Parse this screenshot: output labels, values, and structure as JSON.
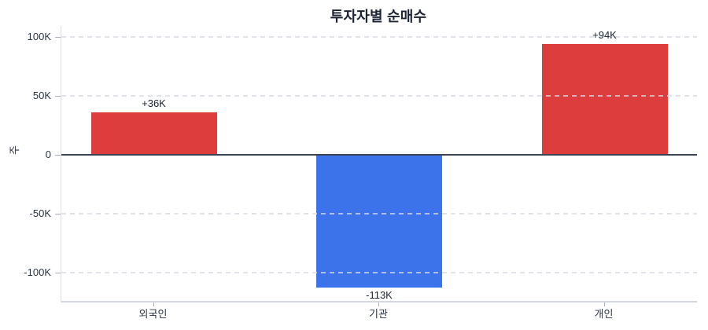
{
  "title": "투자자별 순매수",
  "colors": {
    "positive_bar": "#de3d3d",
    "negative_bar": "#3d73ea",
    "zero_line": "#3b4454",
    "grid_line": "#d5dae2",
    "axis_line": "#d3d8e0",
    "tick_text": "#2b3442",
    "title_text": "#1c2433"
  },
  "chart_data": {
    "type": "bar",
    "title": "투자자별 순매수",
    "xlabel": "",
    "ylabel": "주",
    "categories": [
      "외국인",
      "기관",
      "개인"
    ],
    "values": [
      36000,
      -113000,
      94000
    ],
    "value_labels": [
      "+36K",
      "-113K",
      "+94K"
    ],
    "bar_colors": [
      "#de3d3d",
      "#3d73ea",
      "#de3d3d"
    ],
    "yticks": [
      {
        "value": 100000,
        "label": "100K"
      },
      {
        "value": 50000,
        "label": "50K"
      },
      {
        "value": 0,
        "label": "0"
      },
      {
        "value": -50000,
        "label": "-50K"
      },
      {
        "value": -100000,
        "label": "-100K"
      }
    ],
    "ylim": [
      -124000,
      109000
    ],
    "grid": "horizontal-dashed",
    "legend": "none",
    "zero_baseline": true
  }
}
